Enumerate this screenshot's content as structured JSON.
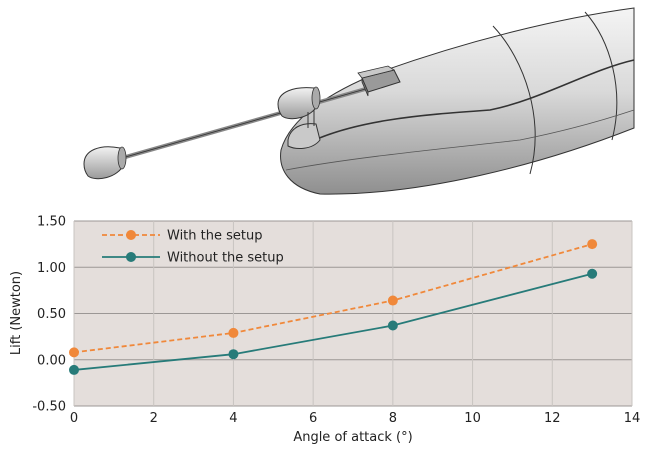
{
  "chart_data": {
    "type": "line",
    "xlabel": "Angle of attack (°)",
    "ylabel": "Lift (Newton)",
    "xlim": [
      0,
      14
    ],
    "ylim": [
      -0.5,
      1.5
    ],
    "xticks": [
      "0",
      "2",
      "4",
      "6",
      "8",
      "10",
      "12",
      "14"
    ],
    "yticks": [
      "-0.50",
      "0.00",
      "0.50",
      "1.00",
      "1.50"
    ],
    "grid": true,
    "legend_position": "top-left",
    "series": [
      {
        "name": "With the setup",
        "color": "#f0883a",
        "line_style": "dashed",
        "x": [
          0,
          4,
          8,
          13
        ],
        "y": [
          0.08,
          0.29,
          0.64,
          1.25
        ]
      },
      {
        "name": "Without the setup",
        "color": "#277b79",
        "line_style": "solid",
        "x": [
          0,
          4,
          8,
          13
        ],
        "y": [
          -0.11,
          0.06,
          0.37,
          0.93
        ]
      }
    ]
  },
  "colors": {
    "plot_background": "#e4dedb",
    "hull_gray": "#d6d6d6"
  }
}
